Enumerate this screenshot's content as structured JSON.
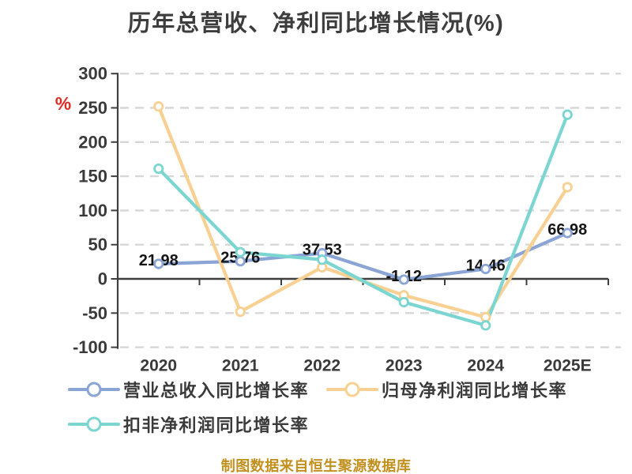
{
  "title": "历年总营收、净利同比增长情况(%)",
  "y_unit": "%",
  "footer": "制图数据来自恒生聚源数据库",
  "accent_colors": {
    "revenue_line": "#8aa4d6",
    "net_profit_line": "#f7d092",
    "non_gaap_line": "#7bd5d0",
    "unit_label_red": "#de2a23",
    "footer_gold": "#c2901e"
  },
  "chart_data": {
    "type": "line",
    "title": "历年总营收、净利同比增长情况(%)",
    "categories": [
      "2020",
      "2021",
      "2022",
      "2023",
      "2024",
      "2025E"
    ],
    "y_ticks": [
      300,
      250,
      200,
      150,
      100,
      50,
      0,
      -50,
      -100
    ],
    "ylim": [
      -100,
      300
    ],
    "ylabel": "%",
    "grid": "horizontal dashed",
    "legend_position": "bottom-left",
    "series": [
      {
        "name": "营业总收入同比增长率",
        "color": "#8aa4d6",
        "values": [
          21.98,
          25.76,
          37.53,
          -1.12,
          14.46,
          66.98
        ],
        "value_labels": [
          "21.98",
          "25.76",
          "37.53",
          "-1.12",
          "14.46",
          "66.98"
        ]
      },
      {
        "name": "归母净利润同比增长率",
        "color": "#f7d092",
        "values": [
          252,
          -48,
          17,
          -24,
          -56,
          134
        ],
        "value_labels": []
      },
      {
        "name": "扣非净利润同比增长率",
        "color": "#7bd5d0",
        "values": [
          161,
          39,
          28,
          -34,
          -68,
          240
        ],
        "value_labels": []
      }
    ]
  }
}
